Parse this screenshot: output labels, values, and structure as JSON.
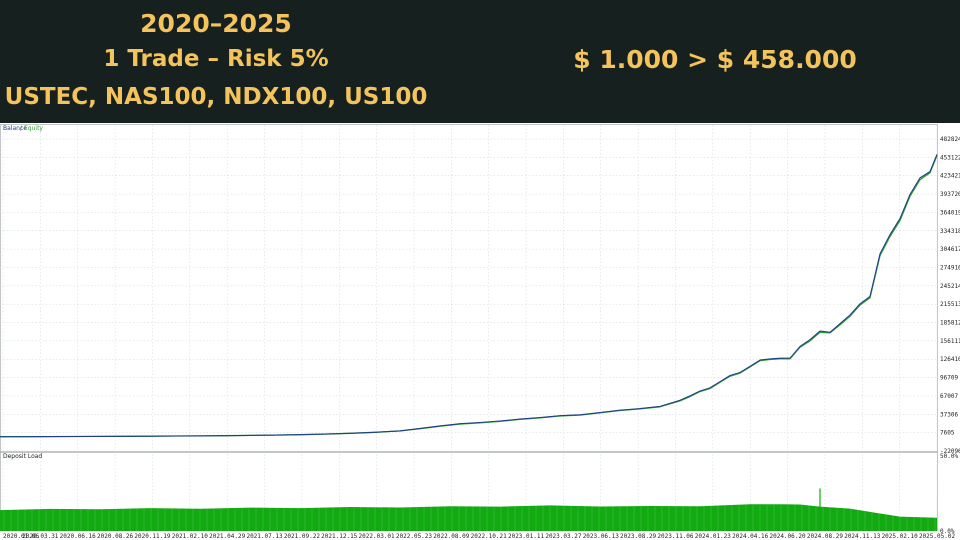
{
  "header": {
    "years": "2020–2025",
    "trade": "1 Trade – Risk 5%",
    "symbols": "USTEC, NAS100, NDX100, US100",
    "growth": "$ 1.000 > $ 458.000"
  },
  "colors": {
    "banner_bg": "#16201f",
    "banner_text": "#f4c35b",
    "balance_line": "#1f3f8a",
    "equity_line": "#2fa52f",
    "deposit_load": "#11aa11",
    "grid": "#cfd6d6"
  },
  "chart_data": [
    {
      "type": "line",
      "legend": [
        {
          "label": "Balance",
          "color": "#1f3f8a"
        },
        {
          "label": "Equity",
          "color": "#2fa52f"
        }
      ],
      "legend_separator": "/",
      "legend_position": "top-left",
      "grid": true,
      "y_axis_side": "right",
      "ylim": [
        -22106,
        482824
      ],
      "y_ticks": [
        "482824",
        "453122",
        "423421",
        "393720",
        "364019",
        "334318",
        "304617",
        "274916",
        "245214",
        "215513",
        "185812",
        "156111",
        "126410",
        "96709",
        "67007",
        "37306",
        "7605",
        "-22096"
      ],
      "x_ticks": [
        "2020.01.06",
        "2020.03.31",
        "2020.06.16",
        "2020.08.26",
        "2020.11.19",
        "2021.02.10",
        "2021.04.29",
        "2021.07.13",
        "2021.09.22",
        "2021.12.15",
        "2022.03.01",
        "2022.05.23",
        "2022.08.09",
        "2022.10.21",
        "2023.01.11",
        "2023.03.27",
        "2023.06.13",
        "2023.08.29",
        "2023.11.06",
        "2024.01.23",
        "2024.04.16",
        "2024.06.20",
        "2024.08.29",
        "2024.11.13",
        "2025.02.10",
        "2025.05.02"
      ],
      "series": [
        {
          "name": "Balance",
          "x": [
            0,
            25,
            50,
            75,
            100,
            125,
            150,
            175,
            200,
            225,
            250,
            275,
            300,
            325,
            350,
            375,
            400,
            420,
            440,
            460,
            480,
            500,
            520,
            540,
            560,
            580,
            600,
            620,
            640,
            660,
            680,
            690,
            700,
            710,
            720,
            730,
            740,
            750,
            760,
            770,
            780,
            790,
            800,
            810,
            820,
            830,
            840,
            850,
            860,
            870,
            880,
            890,
            900,
            910,
            920,
            930,
            937
          ],
          "values": [
            1000,
            1100,
            1250,
            1400,
            1550,
            1700,
            1900,
            2100,
            2400,
            2700,
            3100,
            3600,
            4300,
            5200,
            6500,
            8200,
            10500,
            14500,
            18500,
            22000,
            24000,
            26500,
            29500,
            32000,
            35000,
            36500,
            40000,
            44000,
            46500,
            50000,
            60000,
            67000,
            75000,
            80000,
            90000,
            100000,
            105000,
            115000,
            125000,
            127000,
            128000,
            130000,
            145000,
            160000,
            170000,
            172000,
            182000,
            200000,
            214000,
            230000,
            295000,
            330000,
            352000,
            395000,
            418000,
            432000,
            458000
          ]
        },
        {
          "name": "Equity",
          "x": [
            0,
            25,
            50,
            75,
            100,
            125,
            150,
            175,
            200,
            225,
            250,
            275,
            300,
            325,
            350,
            375,
            400,
            420,
            440,
            460,
            480,
            500,
            520,
            540,
            560,
            580,
            600,
            620,
            640,
            660,
            680,
            690,
            700,
            710,
            720,
            730,
            740,
            750,
            760,
            770,
            780,
            790,
            800,
            810,
            820,
            830,
            840,
            850,
            860,
            870,
            880,
            890,
            900,
            910,
            920,
            930,
            937
          ],
          "values": [
            1000,
            1100,
            1250,
            1400,
            1550,
            1700,
            1900,
            2100,
            2400,
            2700,
            3100,
            3600,
            4300,
            5200,
            6500,
            8200,
            10500,
            14000,
            18000,
            21500,
            23500,
            26000,
            29000,
            31500,
            34500,
            36000,
            39500,
            43500,
            46000,
            49500,
            59000,
            66000,
            74000,
            79000,
            89000,
            99000,
            104000,
            114000,
            124000,
            126000,
            127000,
            129000,
            144000,
            158000,
            168000,
            171000,
            180000,
            198000,
            212000,
            228000,
            292000,
            327000,
            349000,
            392000,
            415000,
            430000,
            456000
          ]
        }
      ]
    },
    {
      "type": "bar",
      "title": "Deposit Load",
      "legend_position": "top-left",
      "y_ticks": [
        "50.0%",
        "0.0%"
      ],
      "ylim": [
        0,
        50
      ],
      "bar_color": "#11aa11",
      "profile_x": [
        0,
        50,
        100,
        150,
        200,
        250,
        300,
        350,
        400,
        450,
        500,
        550,
        600,
        650,
        700,
        750,
        780,
        800,
        820,
        850,
        880,
        900,
        937
      ],
      "profile_values": [
        14,
        14.3,
        14.6,
        14.8,
        14.9,
        15.1,
        15.3,
        15.5,
        15.7,
        16,
        16.3,
        16.6,
        16.4,
        16.2,
        16.6,
        17.3,
        17.8,
        17.2,
        16.3,
        14.5,
        11.8,
        9.2,
        9
      ],
      "spike": {
        "x": 820,
        "value": 28
      }
    }
  ]
}
